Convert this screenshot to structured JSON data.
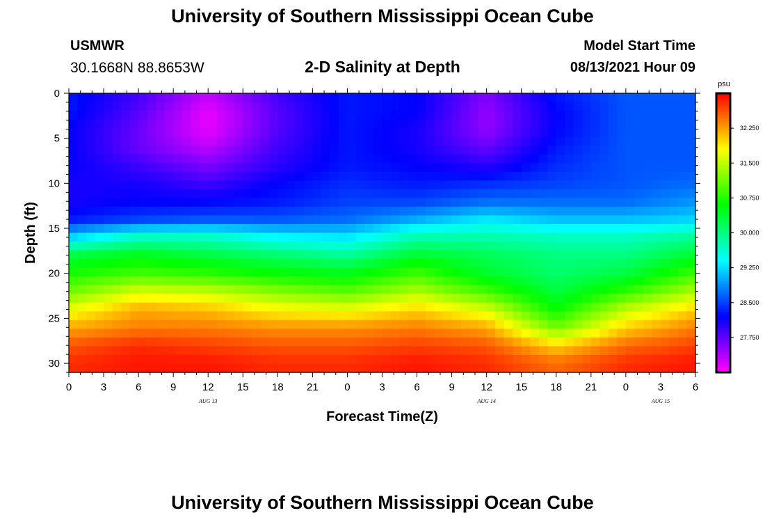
{
  "header": {
    "title": "University of Southern Mississippi Ocean Cube",
    "station": "USMWR",
    "coordinates": "30.1668N  88.8653W",
    "plot_title": "2-D Salinity at Depth",
    "model_start_label": "Model Start Time",
    "model_start_value": "08/13/2021 Hour 09"
  },
  "footer": {
    "title": "University of Southern Mississippi Ocean Cube"
  },
  "chart_data": {
    "type": "heatmap",
    "title": "2-D Salinity at Depth",
    "xlabel": "Forecast Time(Z)",
    "ylabel": "Depth (ft)",
    "xlim": [
      0,
      54
    ],
    "ylim": [
      31,
      0
    ],
    "x_ticks": [
      {
        "pos": 0,
        "label": "0"
      },
      {
        "pos": 3,
        "label": "3"
      },
      {
        "pos": 6,
        "label": "6"
      },
      {
        "pos": 9,
        "label": "9"
      },
      {
        "pos": 12,
        "label": "12"
      },
      {
        "pos": 15,
        "label": "15"
      },
      {
        "pos": 18,
        "label": "18"
      },
      {
        "pos": 21,
        "label": "21"
      },
      {
        "pos": 24,
        "label": "0"
      },
      {
        "pos": 27,
        "label": "3"
      },
      {
        "pos": 30,
        "label": "6"
      },
      {
        "pos": 33,
        "label": "9"
      },
      {
        "pos": 36,
        "label": "12"
      },
      {
        "pos": 39,
        "label": "15"
      },
      {
        "pos": 42,
        "label": "18"
      },
      {
        "pos": 45,
        "label": "21"
      },
      {
        "pos": 48,
        "label": "0"
      },
      {
        "pos": 51,
        "label": "3"
      },
      {
        "pos": 54,
        "label": "6"
      }
    ],
    "date_labels": [
      {
        "pos": 12,
        "label": "AUG 13"
      },
      {
        "pos": 36,
        "label": "AUG 14"
      },
      {
        "pos": 51,
        "label": "AUG 15"
      }
    ],
    "y_ticks": [
      0,
      5,
      10,
      15,
      20,
      25,
      30
    ],
    "colorbar": {
      "unit": "psu",
      "range": [
        27.0,
        33.0
      ],
      "ticks": [
        "32.250",
        "31.500",
        "30.750",
        "30.000",
        "29.250",
        "28.500",
        "27.750"
      ]
    },
    "depth_axis_ft": [
      0,
      2,
      4,
      6,
      8,
      10,
      12,
      14,
      16,
      18,
      20,
      22,
      24,
      26,
      28,
      30
    ],
    "time_axis_hours": [
      0,
      6,
      12,
      18,
      24,
      30,
      36,
      42,
      48,
      54
    ],
    "salinity_psu": [
      [
        28.3,
        27.9,
        27.3,
        27.9,
        28.3,
        28.2,
        27.6,
        28.3,
        28.6,
        28.6
      ],
      [
        28.3,
        27.8,
        27.1,
        27.8,
        28.3,
        28.2,
        27.5,
        28.2,
        28.6,
        28.6
      ],
      [
        28.2,
        27.7,
        27.1,
        27.8,
        28.3,
        28.1,
        27.5,
        28.2,
        28.6,
        28.6
      ],
      [
        28.2,
        27.7,
        27.3,
        27.9,
        28.3,
        28.1,
        27.7,
        28.3,
        28.6,
        28.6
      ],
      [
        28.2,
        27.9,
        27.6,
        28.0,
        28.3,
        28.2,
        28.0,
        28.4,
        28.6,
        28.6
      ],
      [
        28.1,
        28.1,
        27.9,
        28.2,
        28.4,
        28.3,
        28.4,
        28.5,
        28.6,
        28.7
      ],
      [
        28.1,
        28.2,
        28.2,
        28.3,
        28.5,
        28.5,
        28.7,
        28.7,
        28.7,
        28.9
      ],
      [
        28.3,
        28.5,
        28.6,
        28.6,
        28.7,
        29.0,
        29.3,
        29.1,
        29.1,
        29.2
      ],
      [
        29.2,
        29.7,
        29.7,
        29.4,
        29.3,
        29.8,
        29.8,
        29.7,
        29.7,
        29.9
      ],
      [
        30.3,
        30.5,
        30.3,
        30.1,
        29.9,
        30.4,
        30.2,
        30.0,
        30.0,
        30.4
      ],
      [
        30.7,
        30.9,
        30.8,
        30.6,
        30.5,
        30.9,
        30.4,
        30.1,
        30.3,
        30.9
      ],
      [
        31.1,
        31.6,
        31.5,
        31.2,
        31.0,
        31.4,
        30.9,
        30.3,
        30.8,
        31.4
      ],
      [
        31.7,
        32.2,
        32.1,
        31.8,
        31.7,
        32.0,
        31.6,
        30.6,
        31.5,
        32.0
      ],
      [
        32.2,
        32.4,
        32.4,
        32.3,
        32.3,
        32.4,
        32.2,
        31.1,
        32.0,
        32.4
      ],
      [
        32.6,
        32.8,
        32.7,
        32.6,
        32.6,
        32.7,
        32.6,
        32.0,
        32.5,
        32.7
      ],
      [
        32.8,
        32.9,
        32.9,
        32.8,
        32.8,
        32.9,
        32.8,
        32.5,
        32.8,
        32.9
      ]
    ]
  }
}
